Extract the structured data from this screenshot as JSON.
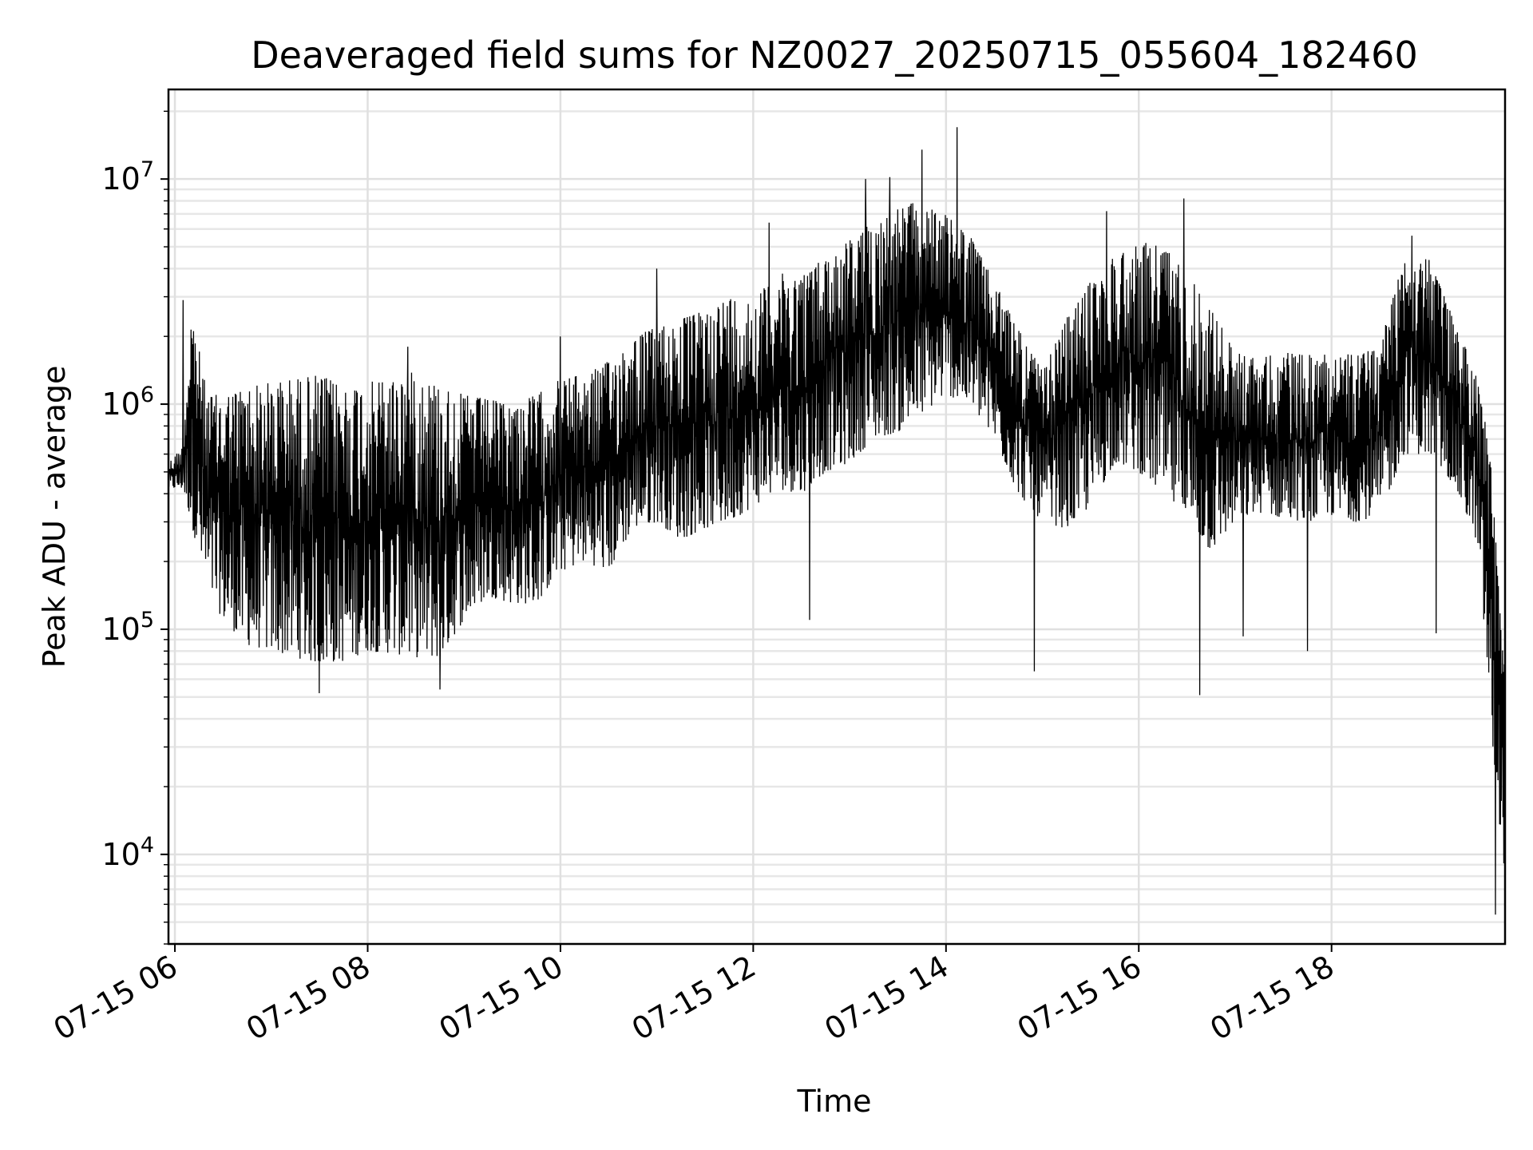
{
  "chart_data": {
    "type": "line",
    "title": "Deaveraged field sums for NZ0027_20250715_055604_182460",
    "xlabel": "Time",
    "ylabel": "Peak ADU - average",
    "y_scale": "log",
    "ylim": [
      4000,
      25000000
    ],
    "xlim": [
      "2025-07-15 05:56",
      "2025-07-15 19:48"
    ],
    "grid": true,
    "grid_which": "both",
    "x_tick_labels": [
      "07-15 06",
      "07-15 08",
      "07-15 10",
      "07-15 12",
      "07-15 14",
      "07-15 16",
      "07-15 18"
    ],
    "x_ticks": [
      "2025-07-15 06:00",
      "2025-07-15 08:00",
      "2025-07-15 10:00",
      "2025-07-15 12:00",
      "2025-07-15 14:00",
      "2025-07-15 16:00",
      "2025-07-15 18:00"
    ],
    "y_ticks": [
      {
        "value": 10000,
        "base": "10",
        "exp": "4"
      },
      {
        "value": 100000,
        "base": "10",
        "exp": "5"
      },
      {
        "value": 1000000,
        "base": "10",
        "exp": "6"
      },
      {
        "value": 10000000,
        "base": "10",
        "exp": "7"
      }
    ],
    "series_color": "#000000",
    "series": [
      {
        "x": [
          "05:56",
          "06:05",
          "06:10",
          "06:20",
          "06:30",
          "06:45",
          "07:00",
          "07:15",
          "07:30",
          "07:45",
          "08:00",
          "08:15",
          "08:30",
          "08:45",
          "09:00",
          "09:15",
          "09:30",
          "09:45",
          "10:00",
          "10:15",
          "10:30",
          "10:45",
          "11:00",
          "11:15",
          "11:30",
          "11:45",
          "12:00",
          "12:15",
          "12:30",
          "12:45",
          "13:00",
          "13:15",
          "13:30",
          "13:45",
          "14:00",
          "14:15",
          "14:30",
          "14:45",
          "15:00",
          "15:15",
          "15:30",
          "15:45",
          "16:00",
          "16:15",
          "16:30",
          "16:45",
          "17:00",
          "17:15",
          "17:30",
          "17:45",
          "18:00",
          "18:15",
          "18:30",
          "18:45",
          "19:00",
          "19:15",
          "19:30",
          "19:35",
          "19:40",
          "19:44",
          "19:48"
        ],
        "low": [
          420000,
          420000,
          300000,
          150000,
          110000,
          85000,
          80000,
          75000,
          70000,
          72000,
          80000,
          78000,
          75000,
          75000,
          110000,
          140000,
          130000,
          130000,
          180000,
          200000,
          180000,
          280000,
          300000,
          250000,
          280000,
          300000,
          350000,
          420000,
          400000,
          500000,
          550000,
          700000,
          750000,
          900000,
          1100000,
          1000000,
          700000,
          400000,
          300000,
          280000,
          350000,
          550000,
          500000,
          400000,
          300000,
          220000,
          300000,
          330000,
          310000,
          300000,
          320000,
          300000,
          320000,
          600000,
          600000,
          450000,
          250000,
          100000,
          30000,
          15000,
          8000
        ],
        "high": [
          550000,
          650000,
          2800000,
          1100000,
          1100000,
          1200000,
          1250000,
          1300000,
          1350000,
          1200000,
          1250000,
          1300000,
          1400000,
          1200000,
          1100000,
          1050000,
          1000000,
          1100000,
          1300000,
          1350000,
          1550000,
          2000000,
          2200000,
          2400000,
          2600000,
          3000000,
          2900000,
          3800000,
          3800000,
          4500000,
          5400000,
          6500000,
          7400000,
          8100000,
          6900000,
          5600000,
          3500000,
          2200000,
          1400000,
          2400000,
          3500000,
          4600000,
          5200000,
          5200000,
          3800000,
          2700000,
          1700000,
          1600000,
          1700000,
          1650000,
          1700000,
          1650000,
          1800000,
          4900000,
          4500000,
          2500000,
          1400000,
          900000,
          500000,
          150000,
          80000
        ],
        "spikes": [
          {
            "x": "06:05",
            "y": 2900000
          },
          {
            "x": "07:30",
            "y": 52000
          },
          {
            "x": "08:25",
            "y": 1800000
          },
          {
            "x": "08:45",
            "y": 54000
          },
          {
            "x": "10:00",
            "y": 2000000
          },
          {
            "x": "11:00",
            "y": 4000000
          },
          {
            "x": "12:10",
            "y": 6400000
          },
          {
            "x": "12:35",
            "y": 110000
          },
          {
            "x": "13:10",
            "y": 10000000
          },
          {
            "x": "13:25",
            "y": 10200000
          },
          {
            "x": "13:45",
            "y": 13500000
          },
          {
            "x": "14:07",
            "y": 17000000
          },
          {
            "x": "14:55",
            "y": 65000
          },
          {
            "x": "15:40",
            "y": 7200000
          },
          {
            "x": "16:28",
            "y": 8200000
          },
          {
            "x": "16:38",
            "y": 51000
          },
          {
            "x": "17:05",
            "y": 93000
          },
          {
            "x": "17:45",
            "y": 80000
          },
          {
            "x": "18:50",
            "y": 5600000
          },
          {
            "x": "19:05",
            "y": 96000
          },
          {
            "x": "19:42",
            "y": 5400
          }
        ]
      }
    ]
  }
}
